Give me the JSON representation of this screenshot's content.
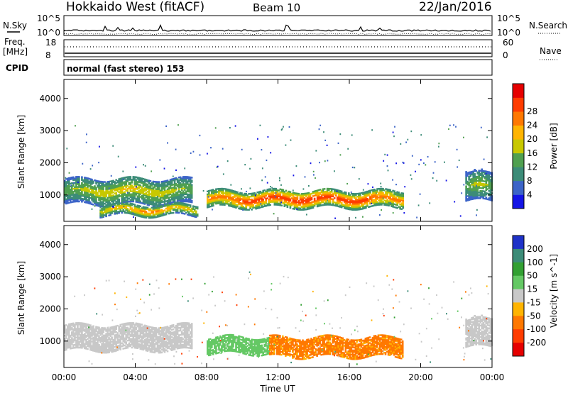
{
  "header": {
    "radar": "Hokkaido West (fitACF)",
    "beam": "Beam 10",
    "date": "22/Jan/2016"
  },
  "top_panels": {
    "nsky_label": "N.Sky",
    "nsky_ticks": [
      "10^5",
      "10^0"
    ],
    "nsearch_label": "N.Search",
    "nsearch_ticks": [
      "10^5",
      "10^0"
    ],
    "freq_label_1": "Freq.",
    "freq_label_2": "[MHz]",
    "freq_ticks": [
      "18",
      "8"
    ],
    "nave_label": "Nave",
    "nave_ticks": [
      "60",
      "0"
    ],
    "cpid_label": "CPID",
    "cpid_text": "normal (fast stereo) 153"
  },
  "chart_data": [
    {
      "type": "heatmap",
      "name": "power",
      "xlabel": "",
      "ylabel": "Slant Range [km]",
      "x_ticks": [
        "00:00",
        "04:00",
        "08:00",
        "12:00",
        "16:00",
        "20:00",
        "00:00"
      ],
      "x_range_hours": [
        0,
        24
      ],
      "y_ticks": [
        1000,
        2000,
        3000,
        4000
      ],
      "ylim": [
        180,
        4590
      ],
      "colorbar": {
        "label": "Power [dB]",
        "ticks": [
          4,
          8,
          12,
          16,
          20,
          24,
          28
        ],
        "range": [
          0,
          32
        ],
        "colors": [
          "#1414e6",
          "#3c64c8",
          "#3c8c78",
          "#50a050",
          "#c8c800",
          "#ffb400",
          "#ff7800",
          "#ff3c00",
          "#e60000"
        ]
      },
      "echo_bands": [
        {
          "t_start": 0.0,
          "t_end": 7.2,
          "range_low": 700,
          "range_high": 1500,
          "peak_db": 18
        },
        {
          "t_start": 2.0,
          "t_end": 7.5,
          "range_low": 350,
          "range_high": 700,
          "peak_db": 22
        },
        {
          "t_start": 8.0,
          "t_end": 19.0,
          "range_low": 600,
          "range_high": 1100,
          "peak_db": 30
        },
        {
          "t_start": 22.5,
          "t_end": 24.0,
          "range_low": 800,
          "range_high": 1700,
          "peak_db": 16
        }
      ]
    },
    {
      "type": "heatmap",
      "name": "velocity",
      "xlabel": "Time UT",
      "ylabel": "Slant Range [km]",
      "x_ticks": [
        "00:00",
        "04:00",
        "08:00",
        "12:00",
        "16:00",
        "20:00",
        "00:00"
      ],
      "x_range_hours": [
        0,
        24
      ],
      "y_ticks": [
        1000,
        2000,
        3000,
        4000
      ],
      "ylim": [
        180,
        4590
      ],
      "colorbar": {
        "label": "Velocity [m s^-1]",
        "ticks": [
          "200",
          "100",
          "50",
          "15",
          "-15",
          "-50",
          "-100",
          "-200"
        ],
        "colors": [
          "#1e32c8",
          "#3c8c78",
          "#32a032",
          "#64c864",
          "#c8c8c8",
          "#ffb400",
          "#ff7800",
          "#ff3c00",
          "#e60000"
        ]
      },
      "echo_bands": [
        {
          "t_start": 0.0,
          "t_end": 7.2,
          "range_low": 700,
          "range_high": 1500,
          "velocity": "ground scatter (grey)"
        },
        {
          "t_start": 8.0,
          "t_end": 11.5,
          "range_low": 600,
          "range_high": 1100,
          "velocity": 30
        },
        {
          "t_start": 11.5,
          "t_end": 19.0,
          "range_low": 500,
          "range_high": 1100,
          "velocity": -60
        },
        {
          "t_start": 22.5,
          "t_end": 24.0,
          "range_low": 800,
          "range_high": 1700,
          "velocity": "ground scatter (grey)"
        }
      ]
    }
  ]
}
